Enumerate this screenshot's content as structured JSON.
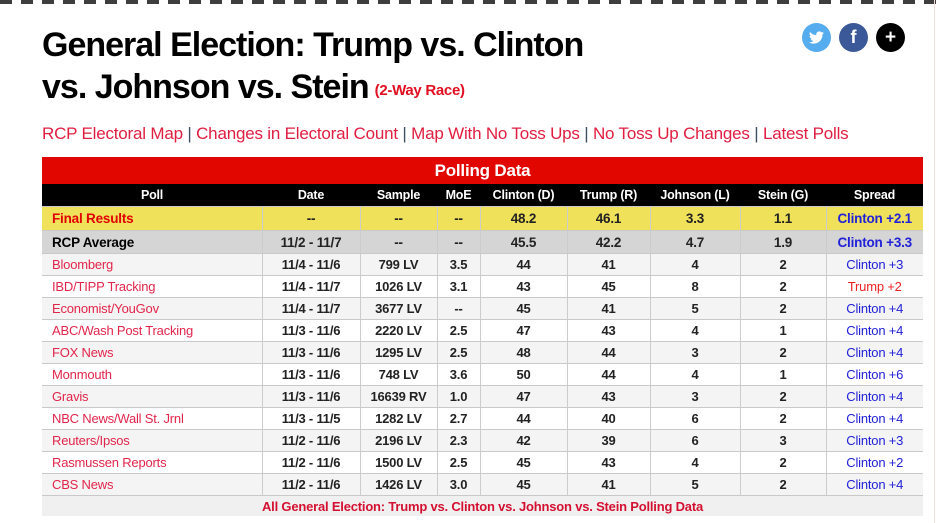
{
  "page": {
    "title_line1": "General Election: Trump vs. Clinton",
    "title_line2": "vs. Johnson vs. Stein",
    "race_note": "(2-Way Race)",
    "nav_separator": "|",
    "nav_links": [
      "RCP Electoral Map",
      "Changes in Electoral Count",
      "Map With No Toss Ups",
      "No Toss Up Changes",
      "Latest Polls"
    ],
    "social": {
      "twitter_icon": "twitter-bird",
      "facebook_glyph": "f",
      "more_glyph": "+"
    }
  },
  "colors": {
    "caption_red": "#e10600",
    "link_red": "#e11d40",
    "final_row_yellow": "#f0e15b",
    "average_row_gray": "#d5d5d5",
    "alt_row_gray": "#f4f4f4",
    "spread_blue": "#2121d8",
    "spread_red": "#ee2222",
    "twitter_blue": "#55acee",
    "facebook_blue": "#3b5998"
  },
  "table": {
    "caption": "Polling Data",
    "columns": [
      "Poll",
      "Date",
      "Sample",
      "MoE",
      "Clinton (D)",
      "Trump (R)",
      "Johnson (L)",
      "Stein (G)",
      "Spread"
    ],
    "rows": [
      {
        "type": "final",
        "poll_link": true,
        "poll": "Final Results",
        "date": "--",
        "sample": "--",
        "moe": "--",
        "clinton": "48.2",
        "trump": "46.1",
        "johnson": "3.3",
        "stein": "1.1",
        "spread": "Clinton +2.1",
        "spread_color": "blue"
      },
      {
        "type": "average",
        "poll_link": false,
        "poll": "RCP Average",
        "date": "11/2 - 11/7",
        "sample": "--",
        "moe": "--",
        "clinton": "45.5",
        "trump": "42.2",
        "johnson": "4.7",
        "stein": "1.9",
        "spread": "Clinton +3.3",
        "spread_color": "blue"
      },
      {
        "type": "poll",
        "poll_link": true,
        "poll": "Bloomberg",
        "date": "11/4 - 11/6",
        "sample": "799 LV",
        "moe": "3.5",
        "clinton": "44",
        "trump": "41",
        "johnson": "4",
        "stein": "2",
        "spread": "Clinton +3",
        "spread_color": "blue"
      },
      {
        "type": "poll",
        "poll_link": true,
        "poll": "IBD/TIPP Tracking",
        "date": "11/4 - 11/7",
        "sample": "1026 LV",
        "moe": "3.1",
        "clinton": "43",
        "trump": "45",
        "johnson": "8",
        "stein": "2",
        "spread": "Trump +2",
        "spread_color": "red"
      },
      {
        "type": "poll",
        "poll_link": true,
        "poll": "Economist/YouGov",
        "date": "11/4 - 11/7",
        "sample": "3677 LV",
        "moe": "--",
        "clinton": "45",
        "trump": "41",
        "johnson": "5",
        "stein": "2",
        "spread": "Clinton +4",
        "spread_color": "blue"
      },
      {
        "type": "poll",
        "poll_link": true,
        "poll": "ABC/Wash Post Tracking",
        "date": "11/3 - 11/6",
        "sample": "2220 LV",
        "moe": "2.5",
        "clinton": "47",
        "trump": "43",
        "johnson": "4",
        "stein": "1",
        "spread": "Clinton +4",
        "spread_color": "blue"
      },
      {
        "type": "poll",
        "poll_link": true,
        "poll": "FOX News",
        "date": "11/3 - 11/6",
        "sample": "1295 LV",
        "moe": "2.5",
        "clinton": "48",
        "trump": "44",
        "johnson": "3",
        "stein": "2",
        "spread": "Clinton +4",
        "spread_color": "blue"
      },
      {
        "type": "poll",
        "poll_link": true,
        "poll": "Monmouth",
        "date": "11/3 - 11/6",
        "sample": "748 LV",
        "moe": "3.6",
        "clinton": "50",
        "trump": "44",
        "johnson": "4",
        "stein": "1",
        "spread": "Clinton +6",
        "spread_color": "blue"
      },
      {
        "type": "poll",
        "poll_link": true,
        "poll": "Gravis",
        "date": "11/3 - 11/6",
        "sample": "16639 RV",
        "moe": "1.0",
        "clinton": "47",
        "trump": "43",
        "johnson": "3",
        "stein": "2",
        "spread": "Clinton +4",
        "spread_color": "blue"
      },
      {
        "type": "poll",
        "poll_link": true,
        "poll": "NBC News/Wall St. Jrnl",
        "date": "11/3 - 11/5",
        "sample": "1282 LV",
        "moe": "2.7",
        "clinton": "44",
        "trump": "40",
        "johnson": "6",
        "stein": "2",
        "spread": "Clinton +4",
        "spread_color": "blue"
      },
      {
        "type": "poll",
        "poll_link": true,
        "poll": "Reuters/Ipsos",
        "date": "11/2 - 11/6",
        "sample": "2196 LV",
        "moe": "2.3",
        "clinton": "42",
        "trump": "39",
        "johnson": "6",
        "stein": "3",
        "spread": "Clinton +3",
        "spread_color": "blue"
      },
      {
        "type": "poll",
        "poll_link": true,
        "poll": "Rasmussen Reports",
        "date": "11/2 - 11/6",
        "sample": "1500 LV",
        "moe": "2.5",
        "clinton": "45",
        "trump": "43",
        "johnson": "4",
        "stein": "2",
        "spread": "Clinton +2",
        "spread_color": "blue"
      },
      {
        "type": "poll",
        "poll_link": true,
        "poll": "CBS News",
        "date": "11/2 - 11/6",
        "sample": "1426 LV",
        "moe": "3.0",
        "clinton": "45",
        "trump": "41",
        "johnson": "5",
        "stein": "2",
        "spread": "Clinton +4",
        "spread_color": "blue"
      }
    ],
    "footer_link": "All General Election: Trump vs. Clinton vs. Johnson vs. Stein Polling Data"
  }
}
